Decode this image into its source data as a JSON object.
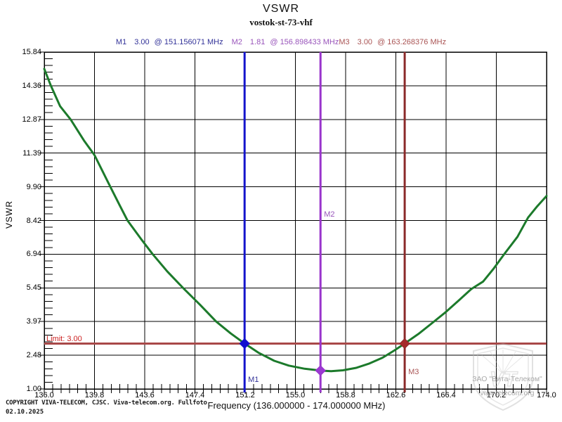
{
  "header": {
    "title": "VSWR",
    "subtitle": "vostok-st-73-vhf"
  },
  "chart_data": {
    "type": "line",
    "title": "VSWR",
    "subtitle": "vostok-st-73-vhf",
    "xlabel": "Frequency (136.000000 - 174.000000 MHz)",
    "ylabel": "VSWR",
    "xlim": [
      136.0,
      174.0
    ],
    "ylim": [
      1.0,
      15.84
    ],
    "grid": true,
    "x_ticks": [
      "136.0",
      "139.8",
      "143.6",
      "147.4",
      "151.2",
      "155.0",
      "158.8",
      "162.6",
      "166.4",
      "170.2",
      "174.0"
    ],
    "y_ticks": [
      "15.84",
      "14.36",
      "12.87",
      "11.39",
      "9.90",
      "8.42",
      "6.94",
      "5.45",
      "3.97",
      "2.48",
      "1.00"
    ],
    "x_minor_divisions": 6,
    "y_minor_divisions": 5,
    "series": [
      {
        "name": "VSWR",
        "color": "#1c7a2b",
        "points": [
          [
            136.0,
            15.1
          ],
          [
            136.5,
            14.36
          ],
          [
            137.2,
            13.45
          ],
          [
            138.0,
            12.87
          ],
          [
            139.0,
            11.95
          ],
          [
            139.8,
            11.3
          ],
          [
            140.4,
            10.6
          ],
          [
            141.0,
            9.9
          ],
          [
            141.7,
            9.1
          ],
          [
            142.3,
            8.42
          ],
          [
            143.3,
            7.62
          ],
          [
            144.2,
            6.94
          ],
          [
            145.3,
            6.18
          ],
          [
            146.5,
            5.45
          ],
          [
            147.8,
            4.7
          ],
          [
            149.0,
            3.97
          ],
          [
            150.1,
            3.45
          ],
          [
            151.156,
            3.0
          ],
          [
            152.2,
            2.6
          ],
          [
            153.4,
            2.24
          ],
          [
            154.5,
            2.03
          ],
          [
            155.7,
            1.89
          ],
          [
            156.898,
            1.81
          ],
          [
            157.7,
            1.78
          ],
          [
            158.6,
            1.82
          ],
          [
            159.6,
            1.93
          ],
          [
            160.6,
            2.12
          ],
          [
            161.6,
            2.38
          ],
          [
            162.5,
            2.7
          ],
          [
            163.268,
            3.0
          ],
          [
            164.3,
            3.42
          ],
          [
            165.3,
            3.88
          ],
          [
            166.4,
            4.4
          ],
          [
            167.4,
            4.92
          ],
          [
            168.3,
            5.4
          ],
          [
            169.2,
            5.73
          ],
          [
            170.0,
            6.3
          ],
          [
            170.8,
            6.94
          ],
          [
            171.8,
            7.7
          ],
          [
            172.6,
            8.55
          ],
          [
            173.3,
            9.05
          ],
          [
            174.0,
            9.5
          ]
        ]
      }
    ],
    "limit_line": {
      "value": 3.0,
      "label": "Limit: 3.00",
      "color": "#a84848",
      "label_color": "#cc2222"
    },
    "markers": [
      {
        "id": "M1",
        "readout_value": "3.00",
        "readout_freq": "@ 151.156071 MHz",
        "freq": 151.156071,
        "vswr": 3.0,
        "line_color": "#1414cc",
        "diamond_color": "#0f0fd0",
        "text_color": "#333399",
        "label_y": 534
      },
      {
        "id": "M2",
        "readout_value": "1.81",
        "readout_freq": "@ 156.898433 MHz",
        "freq": 156.898433,
        "vswr": 1.81,
        "line_color": "#9933cc",
        "diamond_color": "#9b3ad2",
        "text_color": "#9955bb",
        "label_y": 299
      },
      {
        "id": "M3",
        "readout_value": "3.00",
        "readout_freq": "@ 163.268376 MHz",
        "freq": 163.268376,
        "vswr": 3.0,
        "line_color": "#8b2a2a",
        "diamond_color": "#a52a2a",
        "text_color": "#aa5555",
        "label_y": 523
      }
    ]
  },
  "footer": {
    "copyright": "COPYRIGHT VIVA-TELECOM, CJSC. Viva-telecom.org. Fullfoto",
    "date": "02.10.2025"
  },
  "watermark": {
    "line1": "ЗАО \"Вита-Телеком\"",
    "line2": "viva-telecom.org"
  }
}
